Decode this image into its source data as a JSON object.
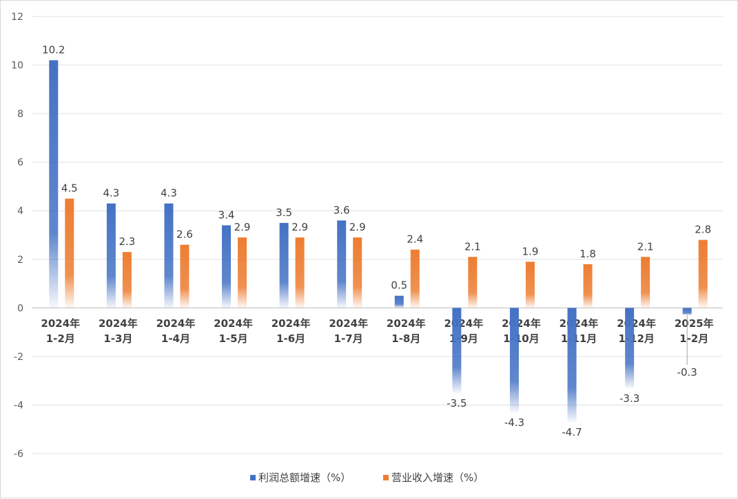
{
  "chart_data": {
    "type": "bar",
    "title": "",
    "xlabel": "",
    "ylabel": "",
    "ylim": [
      -6,
      12
    ],
    "yticks": [
      -6,
      -4,
      -2,
      0,
      2,
      4,
      6,
      8,
      10,
      12
    ],
    "grid": true,
    "legend_position": "bottom",
    "categories": [
      [
        "2024年",
        "1-2月"
      ],
      [
        "2024年",
        "1-3月"
      ],
      [
        "2024年",
        "1-4月"
      ],
      [
        "2024年",
        "1-5月"
      ],
      [
        "2024年",
        "1-6月"
      ],
      [
        "2024年",
        "1-7月"
      ],
      [
        "2024年",
        "1-8月"
      ],
      [
        "2024年",
        "1-9月"
      ],
      [
        "2024年",
        "1-10月"
      ],
      [
        "2024年",
        "1-11月"
      ],
      [
        "2024年",
        "1-12月"
      ],
      [
        "2025年",
        "1-2月"
      ]
    ],
    "series": [
      {
        "name": "利润总额增速（%）",
        "color": "#4472C4",
        "values": [
          10.2,
          4.3,
          4.3,
          3.4,
          3.5,
          3.6,
          0.5,
          -3.5,
          -4.3,
          -4.7,
          -3.3,
          -0.3
        ]
      },
      {
        "name": "营业收入增速（%）",
        "color": "#ED7D31",
        "values": [
          4.5,
          2.3,
          2.6,
          2.9,
          2.9,
          2.9,
          2.4,
          2.1,
          1.9,
          1.8,
          2.1,
          2.8
        ]
      }
    ]
  }
}
